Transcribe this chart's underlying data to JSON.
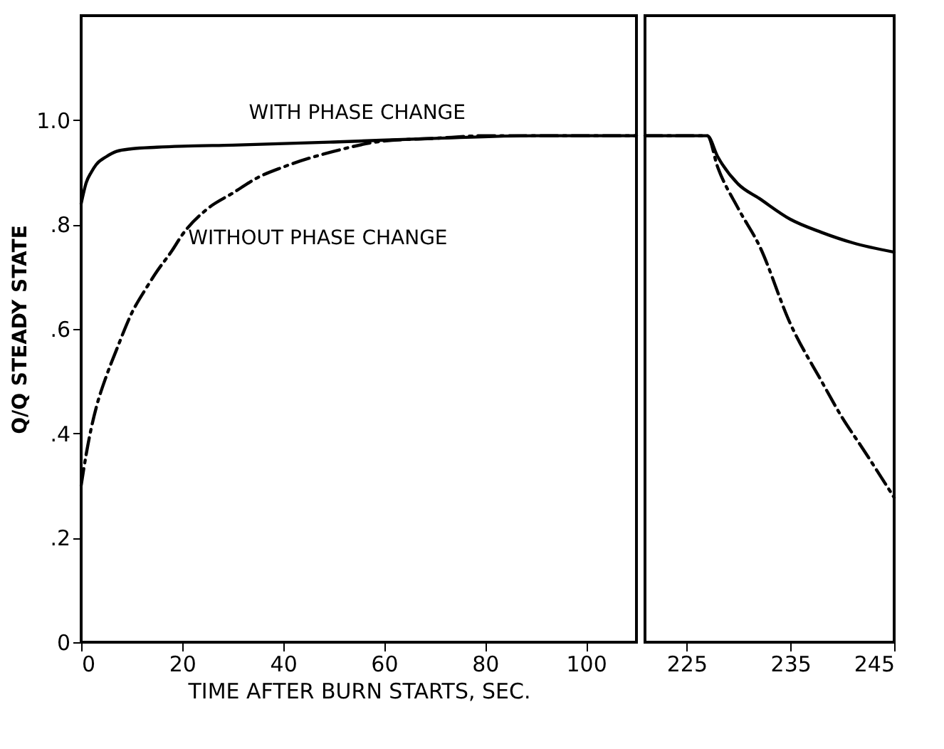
{
  "chart_data": [
    {
      "type": "line",
      "ylabel": "Q/Q STEADY STATE",
      "xlabel": "TIME AFTER BURN STARTS, SEC.",
      "xlim": [
        0,
        110
      ],
      "ylim": [
        0,
        1.2
      ],
      "xticks": [
        0,
        20,
        40,
        60,
        80,
        100
      ],
      "yticks": [
        0,
        {
          "value": 0.2,
          "label": ".2"
        },
        {
          "value": 0.4,
          "label": ".4"
        },
        {
          "value": 0.6,
          "label": ".6"
        },
        {
          "value": 0.8,
          "label": ".8"
        },
        {
          "value": 1.0,
          "label": "1.0"
        }
      ],
      "grid": false,
      "series": [
        {
          "color": "#000000",
          "line_style": "solid",
          "x": [
            0,
            1,
            2,
            3,
            5,
            7,
            10,
            15,
            20,
            30,
            50,
            70,
            90,
            110
          ],
          "values": [
            0.84,
            0.88,
            0.9,
            0.915,
            0.93,
            0.94,
            0.945,
            0.948,
            0.95,
            0.952,
            0.958,
            0.965,
            0.97,
            0.97
          ]
        },
        {
          "color": "#000000",
          "line_style": "dashed",
          "x": [
            0,
            1,
            2,
            3,
            5,
            7,
            10,
            13,
            15,
            18,
            20,
            25,
            30,
            35,
            40,
            50,
            60,
            70,
            80,
            90,
            110
          ],
          "values": [
            0.3,
            0.36,
            0.41,
            0.45,
            0.51,
            0.56,
            0.63,
            0.68,
            0.71,
            0.75,
            0.78,
            0.83,
            0.86,
            0.89,
            0.91,
            0.94,
            0.96,
            0.965,
            0.97,
            0.97,
            0.97
          ]
        }
      ],
      "annotations": [
        {
          "text": "WITH PHASE CHANGE",
          "x": 27,
          "y": 0.95
        },
        {
          "text": "WITHOUT PHASE CHANGE",
          "x": 15,
          "y": 0.71
        }
      ]
    },
    {
      "type": "line",
      "xlim": [
        221,
        245
      ],
      "ylim": [
        0,
        1.2
      ],
      "xticks": [
        225,
        235,
        245
      ],
      "tick_labels": "x",
      "grid": false,
      "series": [
        {
          "color": "#000000",
          "line_style": "solid",
          "x": [
            221,
            227,
            228,
            230,
            232,
            235,
            238,
            241,
            245
          ],
          "values": [
            0.97,
            0.97,
            0.93,
            0.877,
            0.85,
            0.81,
            0.785,
            0.765,
            0.747
          ]
        },
        {
          "color": "#000000",
          "line_style": "dashed",
          "x": [
            221,
            227,
            228,
            230,
            232,
            235,
            238,
            240,
            242,
            245
          ],
          "values": [
            0.97,
            0.97,
            0.91,
            0.83,
            0.76,
            0.61,
            0.5,
            0.43,
            0.37,
            0.277
          ]
        }
      ]
    }
  ]
}
